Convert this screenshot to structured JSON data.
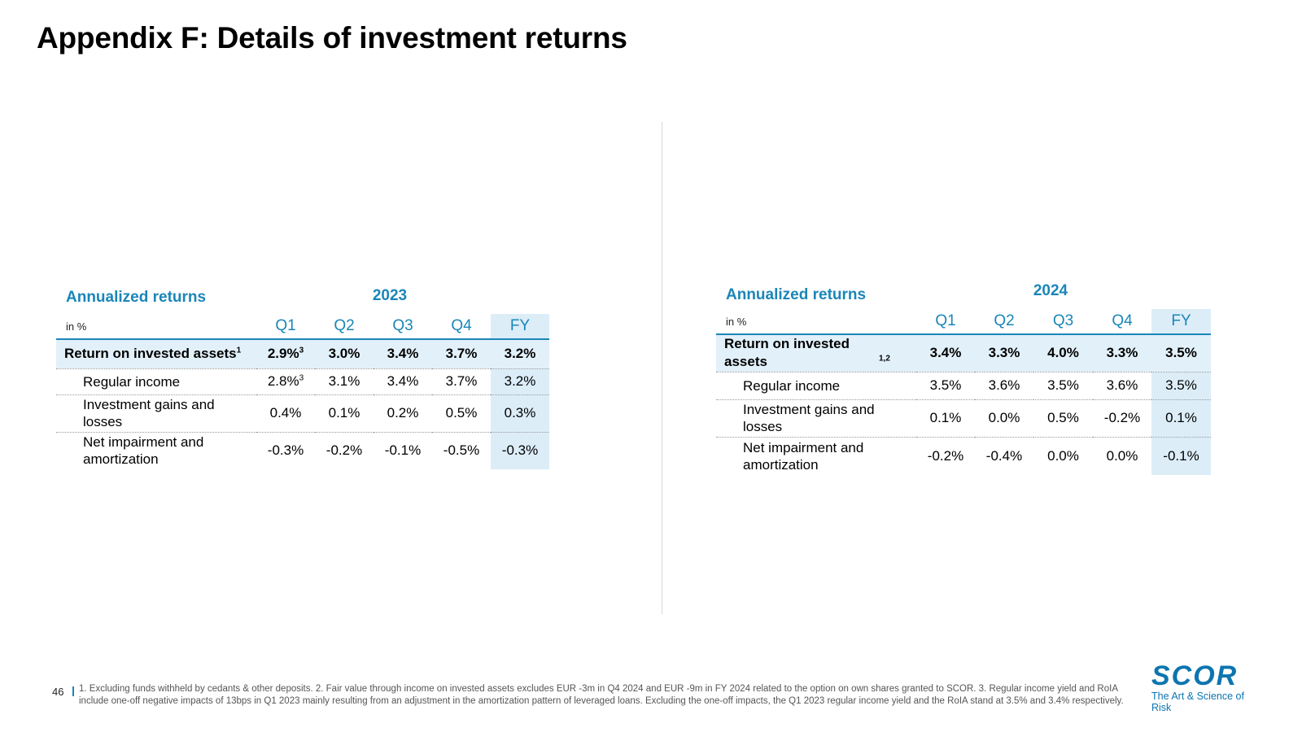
{
  "title": "Appendix F: Details of investment returns",
  "tables": [
    {
      "section_label": "Annualized returns",
      "year": "2023",
      "unit": "in %",
      "columns": [
        "Q1",
        "Q2",
        "Q3",
        "Q4",
        "FY"
      ],
      "rows": [
        {
          "label": "Return on invested assets",
          "sup": "1",
          "values": [
            "2.9%",
            "3.0%",
            "3.4%",
            "3.7%",
            "3.2%"
          ],
          "q1_sup": "3"
        },
        {
          "label": "Regular income",
          "values": [
            "2.8%",
            "3.1%",
            "3.4%",
            "3.7%",
            "3.2%"
          ],
          "q1_sup": "3"
        },
        {
          "label": "Investment gains and losses",
          "values": [
            "0.4%",
            "0.1%",
            "0.2%",
            "0.5%",
            "0.3%"
          ]
        },
        {
          "label": "Net impairment and amortization",
          "values": [
            "-0.3%",
            "-0.2%",
            "-0.1%",
            "-0.5%",
            "-0.3%"
          ]
        }
      ]
    },
    {
      "section_label": "Annualized returns",
      "year": "2024",
      "unit": "in %",
      "columns": [
        "Q1",
        "Q2",
        "Q3",
        "Q4",
        "FY"
      ],
      "rows": [
        {
          "label": "Return on invested assets",
          "sup": "1,2",
          "values": [
            "3.4%",
            "3.3%",
            "4.0%",
            "3.3%",
            "3.5%"
          ]
        },
        {
          "label": "Regular income",
          "values": [
            "3.5%",
            "3.6%",
            "3.5%",
            "3.6%",
            "3.5%"
          ]
        },
        {
          "label": "Investment gains and losses",
          "values": [
            "0.1%",
            "0.0%",
            "0.5%",
            "-0.2%",
            "0.1%"
          ]
        },
        {
          "label": "Net impairment and amortization",
          "values": [
            "-0.2%",
            "-0.4%",
            "0.0%",
            "0.0%",
            "-0.1%"
          ]
        }
      ]
    }
  ],
  "footer": {
    "page_number": "46",
    "footnote": "1. Excluding funds withheld by cedants & other deposits. 2. Fair value through income on invested assets excludes EUR -3m in Q4 2024 and EUR -9m in FY 2024 related to the option on own shares granted to SCOR. 3. Regular income yield and RoIA include one-off negative impacts of 13bps in Q1 2023 mainly resulting from an adjustment in the amortization pattern of leveraged loans. Excluding the one-off impacts, the Q1 2023 regular income yield and the RoIA stand at 3.5% and 3.4% respectively."
  },
  "logo": {
    "name": "SCOR",
    "tagline": "The Art & Science of Risk"
  }
}
